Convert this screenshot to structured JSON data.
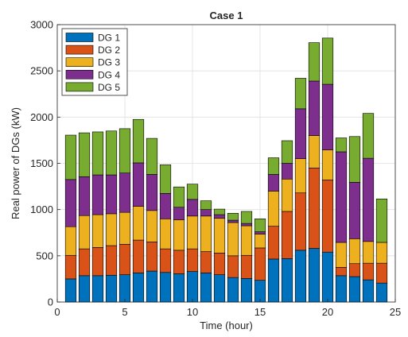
{
  "chart_data": {
    "type": "bar",
    "stacked": true,
    "title": "Case 1",
    "xlabel": "Time (hour)",
    "ylabel": "Real power of DGs (kW)",
    "xlim": [
      0,
      25
    ],
    "ylim": [
      0,
      3000
    ],
    "xticks": [
      0,
      5,
      10,
      15,
      20,
      25
    ],
    "yticks": [
      0,
      500,
      1000,
      1500,
      2000,
      2500,
      3000
    ],
    "grid": true,
    "legend_position": "top-left",
    "x": [
      1,
      2,
      3,
      4,
      5,
      6,
      7,
      8,
      9,
      10,
      11,
      12,
      13,
      14,
      15,
      16,
      17,
      18,
      19,
      20,
      21,
      22,
      23,
      24
    ],
    "series": [
      {
        "name": "DG 1",
        "color": "#0072BD",
        "values": [
          250,
          285,
          285,
          290,
          295,
          315,
          335,
          320,
          305,
          330,
          315,
          295,
          265,
          255,
          235,
          465,
          470,
          560,
          580,
          540,
          285,
          275,
          240,
          205
        ]
      },
      {
        "name": "DG 2",
        "color": "#D95319",
        "values": [
          255,
          290,
          305,
          320,
          330,
          355,
          315,
          255,
          255,
          245,
          230,
          235,
          235,
          250,
          350,
          355,
          510,
          620,
          870,
          780,
          90,
          140,
          180,
          215
        ]
      },
      {
        "name": "DG 3",
        "color": "#EDB120",
        "values": [
          310,
          360,
          355,
          345,
          345,
          365,
          340,
          325,
          330,
          355,
          385,
          375,
          360,
          320,
          150,
          380,
          350,
          370,
          350,
          325,
          270,
          270,
          235,
          225
        ]
      },
      {
        "name": "DG 4",
        "color": "#7E2F8E",
        "values": [
          510,
          420,
          430,
          420,
          425,
          470,
          390,
          275,
          135,
          180,
          70,
          40,
          25,
          25,
          25,
          180,
          170,
          540,
          590,
          710,
          980,
          610,
          900,
          0
        ]
      },
      {
        "name": "DG 5",
        "color": "#77AC30",
        "values": [
          480,
          475,
          465,
          475,
          480,
          470,
          390,
          310,
          220,
          165,
          95,
          60,
          75,
          130,
          140,
          180,
          245,
          330,
          415,
          500,
          150,
          495,
          485,
          470
        ]
      }
    ]
  }
}
